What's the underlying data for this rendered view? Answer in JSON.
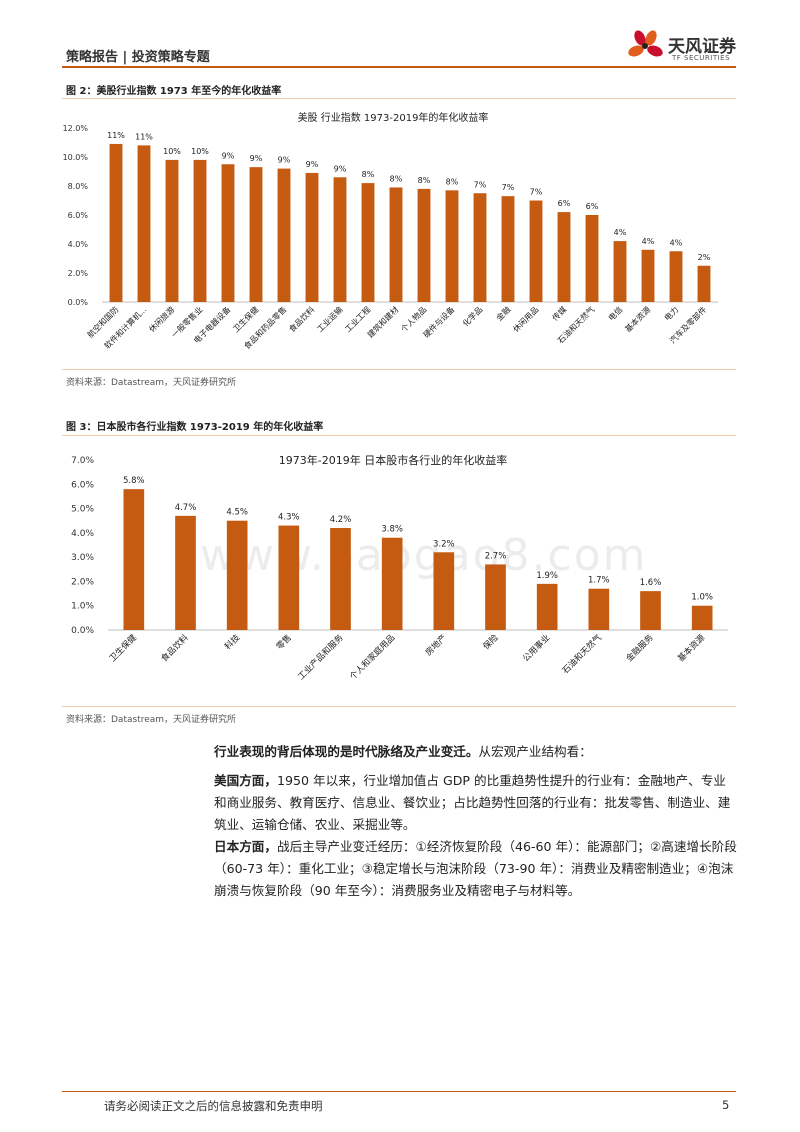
{
  "header": {
    "title": "策略报告 | 投资策略专题",
    "logo_cn": "天风证券",
    "logo_en": "TF SECURITIES"
  },
  "fig2": {
    "caption": "图 2：美股行业指数  1973 年至今的年化收益率",
    "source": "资料来源：Datastream，天风证券研究所"
  },
  "fig3": {
    "caption": "图 3：日本股市各行业指数 1973-2019 年的年化收益率",
    "source": "资料来源：Datastream，天风证券研究所"
  },
  "watermark": "www.baogao8.com",
  "body": {
    "p1_bold": "行业表现的背后体现的是时代脉络及产业变迁。",
    "p1_text": "从宏观产业结构看：",
    "p2_bold": "美国方面，",
    "p2_text": "1950 年以来，行业增加值占 GDP 的比重趋势性提升的行业有：金融地产、专业和商业服务、教育医疗、信息业、餐饮业；占比趋势性回落的行业有：批发零售、制造业、建筑业、运输仓储、农业、采掘业等。",
    "p3_bold": "日本方面，",
    "p3_text": "战后主导产业变迁经历：①经济恢复阶段（46-60 年）：能源部门；②高速增长阶段（60-73 年）：重化工业；③稳定增长与泡沫阶段（73-90 年）：消费业及精密制造业；④泡沫崩溃与恢复阶段（90 年至今）：消费服务业及精密电子与材料等。"
  },
  "footer": {
    "disclaimer": "请务必阅读正文之后的信息披露和免责申明",
    "page": "5"
  },
  "chart_data": [
    {
      "type": "bar",
      "title": "美股 行业指数 1973-2019年的年化收益率",
      "categories": [
        "航空和国防",
        "软件和计算机...",
        "休闲旅游",
        "一般零售业",
        "电子电器设备",
        "卫生保健",
        "食品和药品零售",
        "食品饮料",
        "工业运输",
        "工业工程",
        "建筑和建材",
        "个人物品",
        "硬件与设备",
        "化学品",
        "金融",
        "休闲用品",
        "传媒",
        "石油和天然气",
        "电信",
        "基本资源",
        "电力",
        "汽车及零部件"
      ],
      "values": [
        10.9,
        10.8,
        9.8,
        9.8,
        9.5,
        9.3,
        9.2,
        8.9,
        8.6,
        8.2,
        7.9,
        7.8,
        7.7,
        7.5,
        7.3,
        7.0,
        6.2,
        6.0,
        4.2,
        3.6,
        3.5,
        2.5
      ],
      "data_labels": [
        "11%",
        "11%",
        "10%",
        "10%",
        "9%",
        "9%",
        "9%",
        "9%",
        "9%",
        "8%",
        "8%",
        "8%",
        "8%",
        "7%",
        "7%",
        "7%",
        "6%",
        "6%",
        "4%",
        "4%",
        "4%",
        "2%"
      ],
      "ytick_labels": [
        "0.0%",
        "2.0%",
        "4.0%",
        "6.0%",
        "8.0%",
        "10.0%",
        "12.0%"
      ],
      "ylim": [
        0,
        12
      ],
      "color": "#c55a11",
      "grid": false
    },
    {
      "type": "bar",
      "title": "1973年-2019年 日本股市各行业的年化收益率",
      "categories": [
        "卫生保健",
        "食品饮料",
        "科技",
        "零售",
        "工业产品和服务",
        "个人和家庭用品",
        "房地产",
        "保险",
        "公用事业",
        "石油和天然气",
        "金融服务",
        "基本资源"
      ],
      "values": [
        5.8,
        4.7,
        4.5,
        4.3,
        4.2,
        3.8,
        3.2,
        2.7,
        1.9,
        1.7,
        1.6,
        1.0
      ],
      "data_labels": [
        "5.8%",
        "4.7%",
        "4.5%",
        "4.3%",
        "4.2%",
        "3.8%",
        "3.2%",
        "2.7%",
        "1.9%",
        "1.7%",
        "1.6%",
        "1.0%"
      ],
      "ytick_labels": [
        "0.0%",
        "1.0%",
        "2.0%",
        "3.0%",
        "4.0%",
        "5.0%",
        "6.0%",
        "7.0%"
      ],
      "ylim": [
        0,
        7
      ],
      "color": "#c55a11",
      "grid": false
    }
  ]
}
